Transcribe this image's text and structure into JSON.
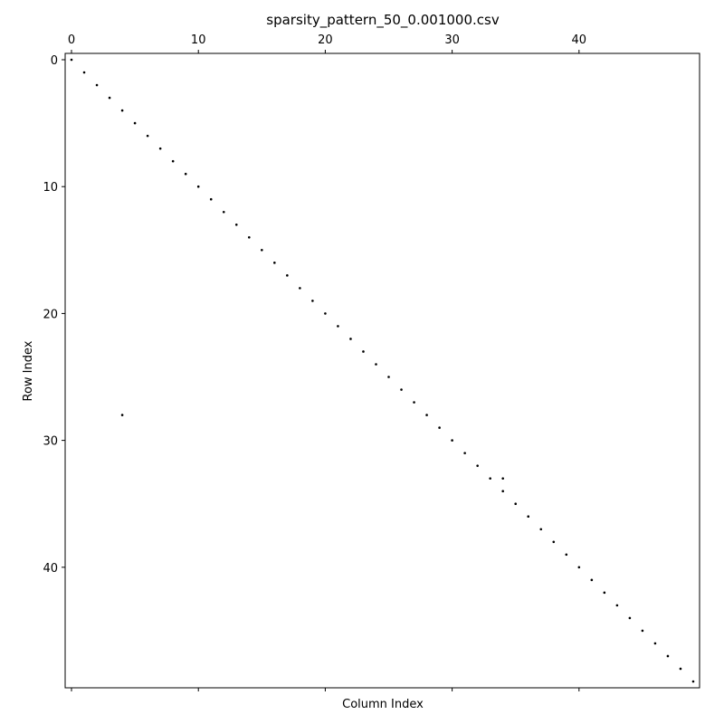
{
  "chart_data": {
    "type": "scatter",
    "title": "sparsity_pattern_50_0.001000.csv",
    "xlabel": "Column Index",
    "ylabel": "Row Index",
    "xlim": [
      -0.5,
      49.5
    ],
    "ylim": [
      49.5,
      -0.5
    ],
    "y_axis_inverted": true,
    "x_axis_position": "top",
    "grid": false,
    "marker_color": "#000000",
    "x_ticks": [
      0,
      10,
      20,
      30,
      40
    ],
    "y_ticks": [
      0,
      10,
      20,
      30,
      40
    ],
    "points": [
      [
        0,
        0
      ],
      [
        1,
        1
      ],
      [
        2,
        2
      ],
      [
        3,
        3
      ],
      [
        4,
        4
      ],
      [
        5,
        5
      ],
      [
        6,
        6
      ],
      [
        7,
        7
      ],
      [
        8,
        8
      ],
      [
        9,
        9
      ],
      [
        10,
        10
      ],
      [
        11,
        11
      ],
      [
        12,
        12
      ],
      [
        13,
        13
      ],
      [
        14,
        14
      ],
      [
        15,
        15
      ],
      [
        16,
        16
      ],
      [
        17,
        17
      ],
      [
        18,
        18
      ],
      [
        19,
        19
      ],
      [
        20,
        20
      ],
      [
        21,
        21
      ],
      [
        22,
        22
      ],
      [
        23,
        23
      ],
      [
        24,
        24
      ],
      [
        25,
        25
      ],
      [
        26,
        26
      ],
      [
        27,
        27
      ],
      [
        28,
        28
      ],
      [
        29,
        29
      ],
      [
        30,
        30
      ],
      [
        31,
        31
      ],
      [
        32,
        32
      ],
      [
        33,
        33
      ],
      [
        34,
        33
      ],
      [
        34,
        34
      ],
      [
        35,
        35
      ],
      [
        36,
        36
      ],
      [
        37,
        37
      ],
      [
        38,
        38
      ],
      [
        39,
        39
      ],
      [
        40,
        40
      ],
      [
        41,
        41
      ],
      [
        42,
        42
      ],
      [
        43,
        43
      ],
      [
        44,
        44
      ],
      [
        45,
        45
      ],
      [
        46,
        46
      ],
      [
        47,
        47
      ],
      [
        48,
        48
      ],
      [
        49,
        49
      ],
      [
        4,
        28
      ]
    ]
  }
}
